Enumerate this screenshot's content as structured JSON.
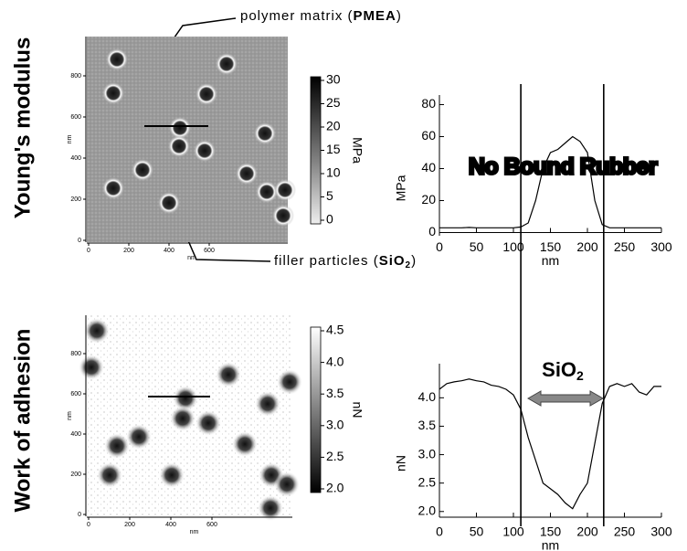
{
  "row_labels": [
    "Young's modulus",
    "Work of adhesion"
  ],
  "annotations": {
    "matrix": [
      "polymer matrix (",
      "PMEA",
      ")"
    ],
    "filler": [
      "filler particles (",
      "SiO",
      "2",
      ")"
    ],
    "no_bound": "No Bound Rubber",
    "sio2": [
      "SiO",
      "2"
    ]
  },
  "images": [
    {
      "xticks": [
        0,
        200,
        400,
        600
      ],
      "yticks": [
        0,
        200,
        400,
        600,
        800
      ],
      "xlabel": "nm",
      "ylabel": "nm",
      "colorbar": {
        "label": "MPa",
        "lim": [
          0,
          30
        ],
        "ticks": [
          0,
          5,
          10,
          15,
          20,
          25,
          30
        ]
      }
    },
    {
      "xticks": [
        0,
        200,
        400,
        600
      ],
      "yticks": [
        0,
        200,
        400,
        600,
        800
      ],
      "xlabel": "nm",
      "ylabel": "nm",
      "colorbar": {
        "label": "nN",
        "lim": [
          2.0,
          4.5
        ],
        "ticks": [
          {
            "value": 2.0,
            "label": "2.0"
          },
          {
            "value": 2.5,
            "label": "2.5"
          },
          {
            "value": 3.0,
            "label": "3.0"
          },
          {
            "value": 3.5,
            "label": "3.5"
          },
          {
            "value": 4.0,
            "label": "4.0"
          },
          {
            "value": 4.5,
            "label": "4.5"
          }
        ]
      }
    }
  ],
  "chart_data": [
    {
      "type": "line",
      "xlabel": "nm",
      "ylabel": "MPa",
      "color": "#000000",
      "x": [
        0,
        10,
        20,
        30,
        40,
        50,
        60,
        70,
        80,
        90,
        100,
        110,
        120,
        130,
        140,
        150,
        160,
        170,
        180,
        190,
        200,
        210,
        220,
        230,
        240,
        250,
        260,
        270,
        280,
        290,
        300
      ],
      "values": [
        3,
        3,
        3,
        3,
        3.2,
        3,
        3,
        3,
        3,
        3,
        3,
        3.5,
        6,
        20,
        40,
        50,
        52,
        56,
        60,
        57,
        50,
        20,
        5,
        3,
        3,
        3,
        3,
        3,
        3,
        3,
        3
      ],
      "xlim": [
        0,
        300
      ],
      "ylim": [
        -2,
        86
      ],
      "xticks": [
        0,
        50,
        100,
        150,
        200,
        250,
        300
      ],
      "yticks": [
        0,
        20,
        40,
        60,
        80
      ],
      "vlines": [
        110,
        222
      ]
    },
    {
      "type": "line",
      "xlabel": "nm",
      "ylabel": "nN",
      "color": "#000000",
      "x": [
        0,
        10,
        20,
        30,
        40,
        50,
        60,
        70,
        80,
        90,
        100,
        110,
        120,
        130,
        140,
        150,
        160,
        170,
        180,
        190,
        200,
        210,
        220,
        230,
        240,
        250,
        260,
        270,
        280,
        290,
        300
      ],
      "values": [
        4.15,
        4.25,
        4.28,
        4.3,
        4.33,
        4.3,
        4.28,
        4.22,
        4.2,
        4.15,
        4.05,
        3.8,
        3.3,
        2.9,
        2.5,
        2.4,
        2.3,
        2.15,
        2.05,
        2.3,
        2.5,
        3.2,
        3.9,
        4.2,
        4.25,
        4.2,
        4.25,
        4.1,
        4.05,
        4.2,
        4.2
      ],
      "xlim": [
        0,
        300
      ],
      "ylim": [
        1.9,
        4.6
      ],
      "xticks": [
        0,
        50,
        100,
        150,
        200,
        250,
        300
      ],
      "yticks": [
        {
          "value": 2.0,
          "label": "2.0"
        },
        {
          "value": 2.5,
          "label": "2.5"
        },
        {
          "value": 3.0,
          "label": "3.0"
        },
        {
          "value": 3.5,
          "label": "3.5"
        },
        {
          "value": 4.0,
          "label": "4.0"
        }
      ]
    }
  ]
}
